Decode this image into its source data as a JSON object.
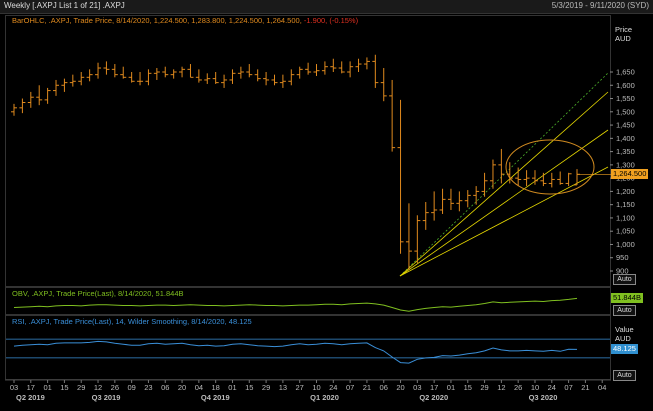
{
  "window": {
    "title": "Weekly [.AXPJ List 1 of 21] .AXPJ",
    "date_range": "5/3/2019 - 9/11/2020 (SYD)"
  },
  "colors": {
    "price": "#e08a1e",
    "obv": "#7fbf20",
    "rsi": "#3a8fd8",
    "fan": "#e6d800",
    "fan_green": "#4caf2a",
    "ellipse": "#d08a20",
    "label_bg_price": "#f0a020",
    "label_bg_obv": "#80c020",
    "label_bg_rsi": "#3090d0"
  },
  "price_panel": {
    "legend": {
      "name": "BarOHLC, .AXPJ, Trade Price, 8/14/2020, 1,224.500, 1,283.800, 1,224.500, 1,264.500,",
      "change": "-1.900, (-0.15%)"
    },
    "axis_title": [
      "Price",
      "AUD"
    ],
    "ticks": [
      "1,650",
      "1,600",
      "1,550",
      "1,500",
      "1,450",
      "1,400",
      "1,350",
      "1,300",
      "1,250",
      "1,200",
      "1,150",
      "1,100",
      "1,050",
      "1,000",
      "950",
      "900"
    ],
    "last_label": "1,264.500",
    "auto": "Auto"
  },
  "obv_panel": {
    "legend": "OBV, .AXPJ, Trade Price(Last), 8/14/2020, 51.844B",
    "last_label": "51.844B",
    "auto": "Auto"
  },
  "rsi_panel": {
    "legend": "RSI, .AXPJ, Trade Price(Last), 14, Wilder Smoothing, 8/14/2020, 48.125",
    "axis_title": [
      "Value",
      "AUD"
    ],
    "last_label": "48.125",
    "auto": "Auto"
  },
  "x_axis": {
    "day_ticks": [
      "03",
      "17",
      "01",
      "15",
      "29",
      "12",
      "26",
      "09",
      "23",
      "06",
      "20",
      "04",
      "18",
      "01",
      "15",
      "29",
      "13",
      "27",
      "10",
      "24",
      "07",
      "21",
      "06",
      "20",
      "03",
      "17",
      "01",
      "15",
      "29",
      "12",
      "26",
      "10",
      "24",
      "07",
      "21",
      "04"
    ],
    "quarters": [
      "Q2 2019",
      "Q3 2019",
      "Q4 2019",
      "Q1 2020",
      "Q2 2020",
      "Q3 2020"
    ]
  },
  "chart_data": [
    {
      "type": "ohlc",
      "title": ".AXPJ Weekly",
      "ylabel": "Price AUD",
      "ylim": [
        860,
        1700
      ],
      "x": [
        "2019-05-03",
        "2019-05-10",
        "2019-05-17",
        "2019-05-24",
        "2019-05-31",
        "2019-06-07",
        "2019-06-14",
        "2019-06-21",
        "2019-06-28",
        "2019-07-05",
        "2019-07-12",
        "2019-07-19",
        "2019-07-26",
        "2019-08-02",
        "2019-08-09",
        "2019-08-16",
        "2019-08-23",
        "2019-08-30",
        "2019-09-06",
        "2019-09-13",
        "2019-09-20",
        "2019-09-27",
        "2019-10-04",
        "2019-10-11",
        "2019-10-18",
        "2019-10-25",
        "2019-11-01",
        "2019-11-08",
        "2019-11-15",
        "2019-11-22",
        "2019-11-29",
        "2019-12-06",
        "2019-12-13",
        "2019-12-20",
        "2019-12-27",
        "2020-01-03",
        "2020-01-10",
        "2020-01-17",
        "2020-01-24",
        "2020-01-31",
        "2020-02-07",
        "2020-02-14",
        "2020-02-21",
        "2020-02-28",
        "2020-03-06",
        "2020-03-13",
        "2020-03-20",
        "2020-03-27",
        "2020-04-03",
        "2020-04-10",
        "2020-04-17",
        "2020-04-24",
        "2020-05-01",
        "2020-05-08",
        "2020-05-15",
        "2020-05-22",
        "2020-05-29",
        "2020-06-05",
        "2020-06-12",
        "2020-06-19",
        "2020-06-26",
        "2020-07-03",
        "2020-07-10",
        "2020-07-17",
        "2020-07-24",
        "2020-07-31",
        "2020-08-07",
        "2020-08-14"
      ],
      "open": [
        1500,
        1515,
        1535,
        1555,
        1545,
        1580,
        1600,
        1610,
        1615,
        1630,
        1640,
        1665,
        1660,
        1640,
        1630,
        1615,
        1615,
        1645,
        1650,
        1640,
        1650,
        1660,
        1630,
        1620,
        1625,
        1610,
        1620,
        1645,
        1650,
        1640,
        1625,
        1620,
        1610,
        1615,
        1640,
        1660,
        1650,
        1655,
        1670,
        1665,
        1650,
        1670,
        1680,
        1690,
        1610,
        1560,
        1365,
        1010,
        975,
        1090,
        1120,
        1130,
        1170,
        1155,
        1165,
        1185,
        1200,
        1240,
        1300,
        1265,
        1250,
        1245,
        1250,
        1240,
        1230,
        1245,
        1230,
        1224.5
      ],
      "high": [
        1530,
        1550,
        1575,
        1600,
        1590,
        1620,
        1625,
        1640,
        1650,
        1660,
        1685,
        1690,
        1680,
        1670,
        1650,
        1650,
        1660,
        1665,
        1670,
        1660,
        1670,
        1680,
        1660,
        1645,
        1650,
        1640,
        1660,
        1670,
        1680,
        1660,
        1650,
        1640,
        1640,
        1660,
        1670,
        1685,
        1680,
        1690,
        1700,
        1690,
        1690,
        1700,
        1705,
        1715,
        1665,
        1620,
        1545,
        1155,
        1110,
        1160,
        1200,
        1210,
        1210,
        1200,
        1205,
        1220,
        1270,
        1320,
        1360,
        1310,
        1290,
        1280,
        1280,
        1270,
        1270,
        1275,
        1270,
        1283.8
      ],
      "low": [
        1485,
        1495,
        1515,
        1525,
        1530,
        1560,
        1575,
        1595,
        1600,
        1615,
        1625,
        1640,
        1630,
        1625,
        1610,
        1600,
        1600,
        1620,
        1630,
        1625,
        1630,
        1630,
        1610,
        1605,
        1605,
        1590,
        1605,
        1625,
        1630,
        1615,
        1600,
        1600,
        1590,
        1600,
        1625,
        1640,
        1635,
        1640,
        1650,
        1645,
        1630,
        1650,
        1660,
        1590,
        1540,
        1350,
        965,
        905,
        930,
        1055,
        1090,
        1115,
        1130,
        1125,
        1140,
        1150,
        1180,
        1210,
        1230,
        1230,
        1220,
        1220,
        1225,
        1220,
        1215,
        1225,
        1220,
        1224.5
      ],
      "close": [
        1515,
        1535,
        1555,
        1545,
        1580,
        1600,
        1610,
        1615,
        1630,
        1640,
        1665,
        1660,
        1640,
        1630,
        1615,
        1615,
        1645,
        1650,
        1640,
        1650,
        1660,
        1630,
        1620,
        1625,
        1610,
        1620,
        1645,
        1650,
        1640,
        1625,
        1620,
        1610,
        1615,
        1640,
        1660,
        1650,
        1655,
        1670,
        1665,
        1650,
        1670,
        1680,
        1690,
        1610,
        1560,
        1365,
        1010,
        975,
        1090,
        1120,
        1130,
        1170,
        1155,
        1165,
        1185,
        1200,
        1240,
        1300,
        1265,
        1250,
        1245,
        1250,
        1240,
        1230,
        1245,
        1230,
        1266.4,
        1264.5
      ]
    },
    {
      "type": "line",
      "title": "OBV",
      "series": [
        {
          "name": "OBV",
          "values": [
            49.6,
            49.7,
            49.8,
            49.9,
            49.8,
            50.0,
            50.1,
            50.1,
            50.0,
            50.2,
            50.3,
            50.3,
            50.2,
            50.1,
            50.1,
            50.0,
            50.1,
            50.2,
            50.2,
            50.1,
            50.2,
            50.3,
            50.2,
            50.1,
            50.1,
            50.0,
            50.1,
            50.2,
            50.3,
            50.2,
            50.1,
            50.1,
            50.0,
            50.1,
            50.2,
            50.2,
            50.3,
            50.4,
            50.4,
            50.3,
            50.5,
            50.6,
            50.7,
            50.5,
            50.2,
            49.6,
            49.0,
            48.7,
            49.1,
            49.4,
            49.6,
            49.8,
            49.7,
            49.9,
            50.1,
            50.3,
            50.6,
            51.0,
            50.8,
            50.9,
            51.0,
            51.1,
            51.2,
            51.1,
            51.3,
            51.4,
            51.6,
            51.844
          ]
        }
      ],
      "ylabel": "Billions"
    },
    {
      "type": "line",
      "title": "RSI (14, Wilder Smoothing)",
      "ylim": [
        0,
        100
      ],
      "series": [
        {
          "name": "RSI",
          "values": [
            55,
            57,
            58,
            59,
            58,
            61,
            62,
            62,
            62,
            63,
            65,
            64,
            61,
            59,
            57,
            57,
            60,
            61,
            59,
            60,
            61,
            58,
            56,
            57,
            55,
            56,
            59,
            60,
            58,
            56,
            55,
            54,
            55,
            58,
            60,
            58,
            59,
            61,
            60,
            58,
            60,
            61,
            62,
            52,
            45,
            32,
            20,
            19,
            27,
            30,
            31,
            35,
            34,
            36,
            39,
            41,
            45,
            51,
            47,
            45,
            45,
            46,
            45,
            44,
            46,
            44,
            48.4,
            48.125
          ]
        }
      ]
    }
  ]
}
